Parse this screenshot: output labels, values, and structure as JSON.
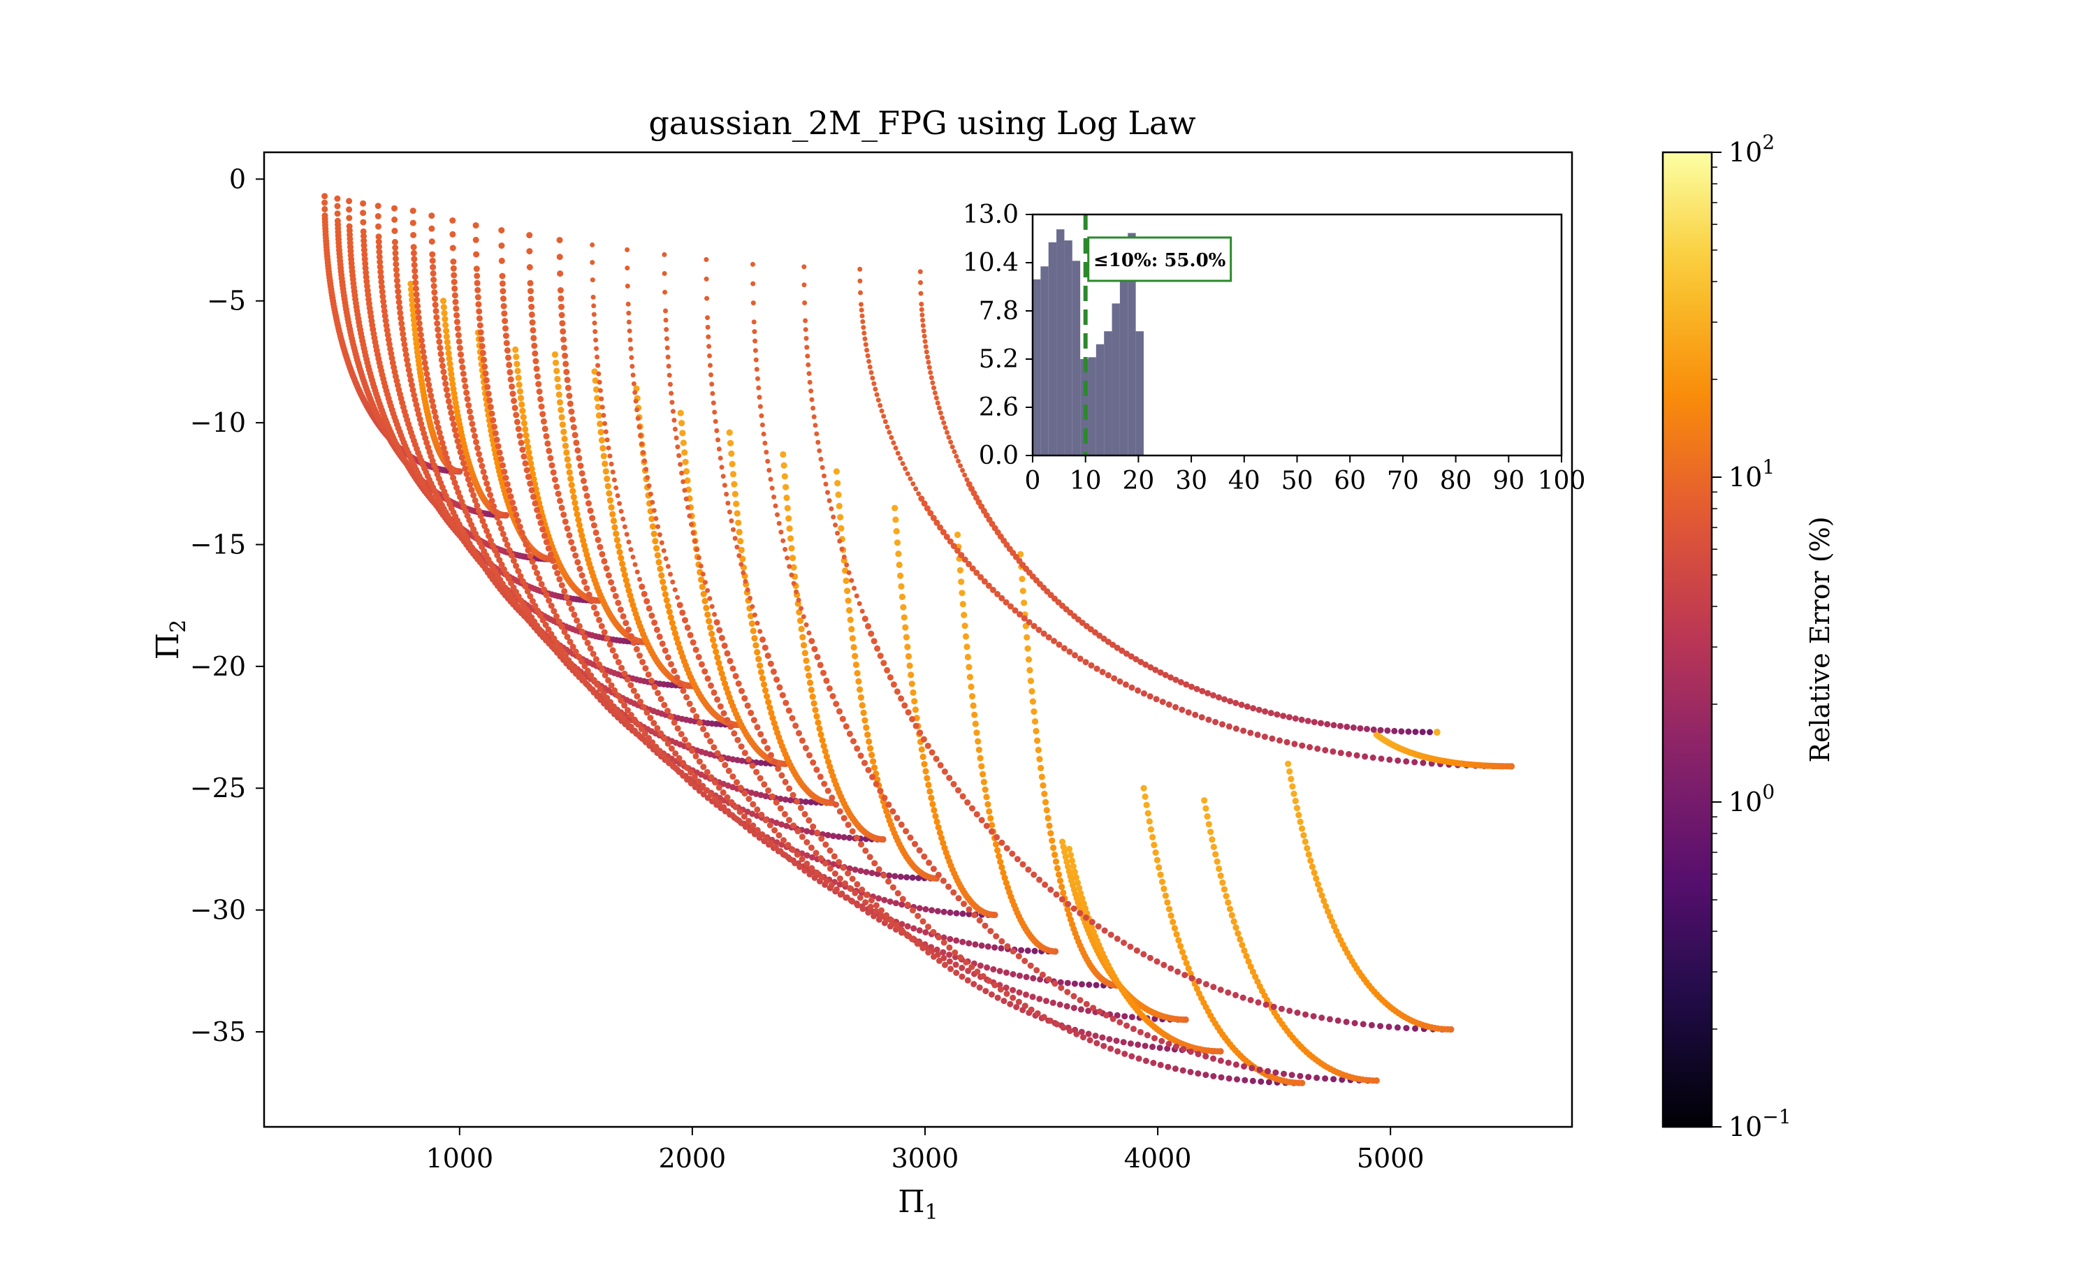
{
  "chart_data": {
    "type": "scatter",
    "title": "gaussian_2M_FPG using Log Law",
    "xlabel": "Π",
    "xlabel_sub": "1",
    "ylabel": "Π",
    "ylabel_sub": "2",
    "xlim": [
      160,
      5780
    ],
    "ylim": [
      -38.9,
      1.1
    ],
    "xticks": [
      1000,
      2000,
      3000,
      4000,
      5000
    ],
    "yticks": [
      0,
      -5,
      -10,
      -15,
      -20,
      -25,
      -30,
      -35
    ],
    "curves": [
      {
        "tip": [
          420,
          -0.7
        ],
        "bottom": [
          1000,
          -12.0
        ],
        "end": [
          790,
          -4.3
        ]
      },
      {
        "tip": [
          475,
          -0.8
        ],
        "bottom": [
          1200,
          -13.8
        ],
        "end": [
          930,
          -5.0
        ]
      },
      {
        "tip": [
          525,
          -0.9
        ],
        "bottom": [
          1400,
          -15.6
        ],
        "end": [
          1080,
          -6.3
        ]
      },
      {
        "tip": [
          585,
          -1.0
        ],
        "bottom": [
          1600,
          -17.3
        ],
        "end": [
          1240,
          -7.0
        ]
      },
      {
        "tip": [
          650,
          -1.1
        ],
        "bottom": [
          1800,
          -19.0
        ],
        "end": [
          1410,
          -7.2
        ]
      },
      {
        "tip": [
          720,
          -1.2
        ],
        "bottom": [
          2000,
          -20.8
        ],
        "end": [
          1580,
          -7.9
        ]
      },
      {
        "tip": [
          800,
          -1.3
        ],
        "bottom": [
          2200,
          -22.4
        ],
        "end": [
          1760,
          -8.6
        ]
      },
      {
        "tip": [
          880,
          -1.5
        ],
        "bottom": [
          2400,
          -24.0
        ],
        "end": [
          1950,
          -9.6
        ]
      },
      {
        "tip": [
          970,
          -1.7
        ],
        "bottom": [
          2600,
          -25.6
        ],
        "end": [
          2160,
          -10.4
        ]
      },
      {
        "tip": [
          1070,
          -1.9
        ],
        "bottom": [
          2820,
          -27.1
        ],
        "end": [
          2390,
          -11.3
        ]
      },
      {
        "tip": [
          1180,
          -2.1
        ],
        "bottom": [
          3050,
          -28.7
        ],
        "end": [
          2620,
          -12.0
        ]
      },
      {
        "tip": [
          1300,
          -2.3
        ],
        "bottom": [
          3300,
          -30.2
        ],
        "end": [
          2870,
          -13.5
        ]
      },
      {
        "tip": [
          1430,
          -2.5
        ],
        "bottom": [
          3560,
          -31.7
        ],
        "end": [
          3140,
          -14.6
        ]
      },
      {
        "tip": [
          1570,
          -2.7
        ],
        "bottom": [
          3830,
          -33.1
        ],
        "end": [
          3410,
          -15.4
        ]
      },
      {
        "tip": [
          1720,
          -2.9
        ],
        "bottom": [
          4120,
          -34.5
        ],
        "end": [
          3590,
          -27.2
        ]
      },
      {
        "tip": [
          1880,
          -3.1
        ],
        "bottom": [
          4270,
          -35.8
        ],
        "end": [
          3620,
          -27.5
        ]
      },
      {
        "tip": [
          2060,
          -3.3
        ],
        "bottom": [
          4620,
          -37.1
        ],
        "end": [
          3940,
          -25.0
        ]
      },
      {
        "tip": [
          2260,
          -3.5
        ],
        "bottom": [
          4940,
          -37.0
        ],
        "end": [
          4200,
          -25.5
        ]
      },
      {
        "tip": [
          2480,
          -3.6
        ],
        "bottom": [
          5260,
          -34.9
        ],
        "end": [
          4560,
          -24.0
        ]
      },
      {
        "tip": [
          2720,
          -3.7
        ],
        "bottom": [
          5520,
          -24.1
        ],
        "end": [
          4940,
          -22.8
        ]
      },
      {
        "tip": [
          2980,
          -3.8
        ],
        "bottom": [
          5200,
          -22.7
        ],
        "end": [
          5200,
          -22.7
        ]
      }
    ],
    "colorbar": {
      "label": "Relative Error (%)",
      "scale": "log",
      "ticks": [
        {
          "value": 0.1,
          "base": "10",
          "exp": "−1"
        },
        {
          "value": 1,
          "base": "10",
          "exp": "0"
        },
        {
          "value": 10,
          "base": "10",
          "exp": "1"
        },
        {
          "value": 100,
          "base": "10",
          "exp": "2"
        }
      ],
      "range": [
        0.1,
        100
      ],
      "colormap": "inferno"
    },
    "inset": {
      "type": "histogram",
      "xlim": [
        0,
        100
      ],
      "ylim": [
        0,
        13.0
      ],
      "xticks": [
        "0",
        "10",
        "20",
        "30",
        "40",
        "50",
        "60",
        "70",
        "80",
        "90",
        "100"
      ],
      "yticks": [
        "0.0",
        "2.6",
        "5.2",
        "7.8",
        "10.4",
        "13.0"
      ],
      "bin_width": 1.5,
      "bins": [
        {
          "start": 0.0,
          "value": 9.5
        },
        {
          "start": 1.5,
          "value": 10.2
        },
        {
          "start": 3.0,
          "value": 11.5
        },
        {
          "start": 4.5,
          "value": 12.2
        },
        {
          "start": 6.0,
          "value": 11.6
        },
        {
          "start": 7.5,
          "value": 10.5
        },
        {
          "start": 9.0,
          "value": 5.2
        },
        {
          "start": 10.5,
          "value": 5.3
        },
        {
          "start": 12.0,
          "value": 6.0
        },
        {
          "start": 13.5,
          "value": 6.7
        },
        {
          "start": 15.0,
          "value": 8.2
        },
        {
          "start": 16.5,
          "value": 11.8
        },
        {
          "start": 18.0,
          "value": 12.0
        },
        {
          "start": 19.5,
          "value": 6.7
        }
      ],
      "threshold": 10,
      "annotation": "≤10%: 55.0%",
      "bar_color": "#6b6b8e",
      "line_color": "#2a8a2a"
    }
  }
}
